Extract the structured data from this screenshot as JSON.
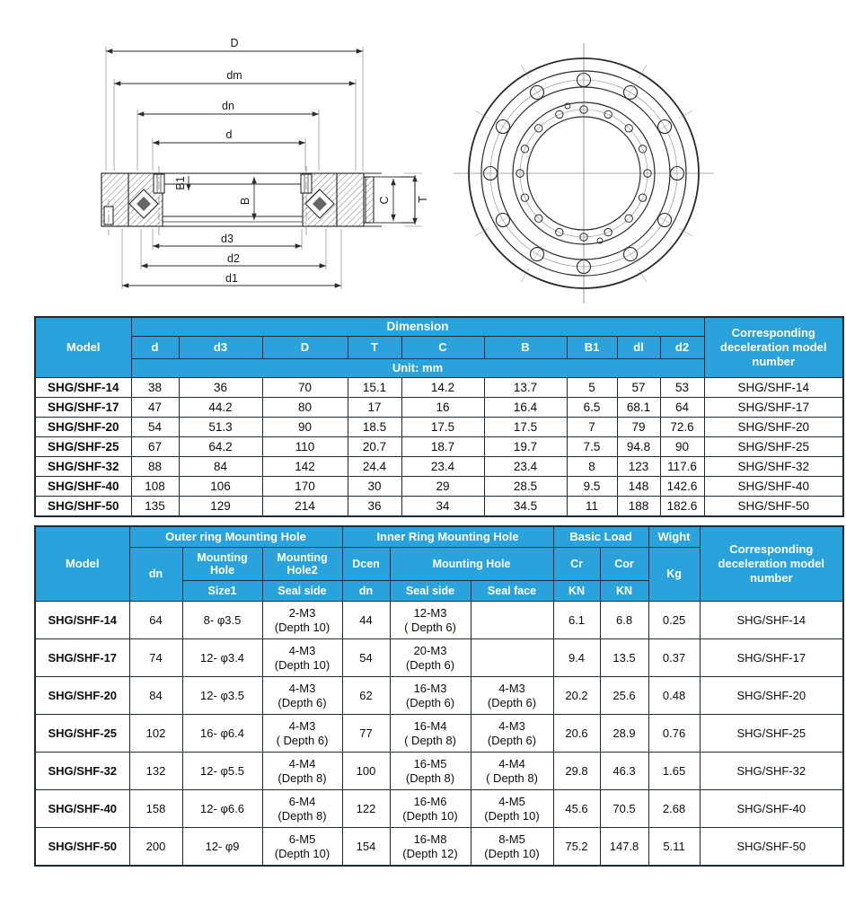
{
  "colors": {
    "header_blue": "#2aa3dc",
    "model_blue": "#2fb5e9",
    "border_dark": "#1c2b36",
    "line_dark": "#2b2b2b"
  },
  "diagram": {
    "labels": {
      "D": "D",
      "dm": "dm",
      "dn": "dn",
      "d": "d",
      "d3": "d3",
      "d2": "d2",
      "d1": "d1",
      "B": "B",
      "B1": "B1",
      "C": "C",
      "T": "T"
    },
    "front_view": {
      "outer_holes": 12,
      "inner_holes": 16
    }
  },
  "table1": {
    "header": {
      "model": "Model",
      "dimension": "Dimension",
      "unit": "Unit:  mm",
      "corresponding": "Corresponding deceleration model number",
      "cols": [
        "d",
        "d3",
        "D",
        "T",
        "C",
        "B",
        "B1",
        "dl",
        "d2"
      ]
    },
    "rows": [
      [
        "SHG/SHF-14",
        "38",
        "36",
        "70",
        "15.1",
        "14.2",
        "13.7",
        "5",
        "57",
        "53",
        "SHG/SHF-14"
      ],
      [
        "SHG/SHF-17",
        "47",
        "44.2",
        "80",
        "17",
        "16",
        "16.4",
        "6.5",
        "68.1",
        "64",
        "SHG/SHF-17"
      ],
      [
        "SHG/SHF-20",
        "54",
        "51.3",
        "90",
        "18.5",
        "17.5",
        "17.5",
        "7",
        "79",
        "72.6",
        "SHG/SHF-20"
      ],
      [
        "SHG/SHF-25",
        "67",
        "64.2",
        "110",
        "20.7",
        "18.7",
        "19.7",
        "7.5",
        "94.8",
        "90",
        "SHG/SHF-25"
      ],
      [
        "SHG/SHF-32",
        "88",
        "84",
        "142",
        "24.4",
        "23.4",
        "23.4",
        "8",
        "123",
        "117.6",
        "SHG/SHF-32"
      ],
      [
        "SHG/SHF-40",
        "108",
        "106",
        "170",
        "30",
        "29",
        "28.5",
        "9.5",
        "148",
        "142.6",
        "SHG/SHF-40"
      ],
      [
        "SHG/SHF-50",
        "135",
        "129",
        "214",
        "36",
        "34",
        "34.5",
        "11",
        "188",
        "182.6",
        "SHG/SHF-50"
      ]
    ]
  },
  "table2": {
    "header": {
      "model": "Model",
      "outer_group": "Outer ring Mounting Hole",
      "inner_group": "Inner Ring Mounting Hole",
      "basic_load": "Basic Load",
      "wight": "Wight",
      "corresponding": "Corresponding deceleration model number",
      "dn": "dn",
      "mounting_hole": "Mounting Hole",
      "mounting_hole2": "Mounting Hole2",
      "dcen": "Dcen",
      "mounting_hole_inner": "Mounting Hole",
      "cr": "Cr",
      "cor": "Cor",
      "kg": "Kg",
      "size1": "Size1",
      "seal_side_outer": "Seal side",
      "dn_inner": "dn",
      "seal_side_inner": "Seal side",
      "seal_face": "Seal face",
      "kn1": "KN",
      "kn2": "KN"
    },
    "rows": [
      [
        "SHG/SHF-14",
        "64",
        "8- φ3.5",
        "2-M3\n(Depth 10)",
        "44",
        "12-M3\n( Depth 6)",
        "",
        "6.1",
        "6.8",
        "0.25",
        "SHG/SHF-14"
      ],
      [
        "SHG/SHF-17",
        "74",
        "12- φ3.4",
        "4-M3\n(Depth 10)",
        "54",
        "20-M3\n(Depth 6)",
        "",
        "9.4",
        "13.5",
        "0.37",
        "SHG/SHF-17"
      ],
      [
        "SHG/SHF-20",
        "84",
        "12- φ3.5",
        "4-M3\n(Depth 6)",
        "62",
        "16-M3\n(Depth 6)",
        "4-M3\n(Depth 6)",
        "20.2",
        "25.6",
        "0.48",
        "SHG/SHF-20"
      ],
      [
        "SHG/SHF-25",
        "102",
        "16- φ6.4",
        "4-M3\n( Depth 6)",
        "77",
        "16-M4\n( Depth 8)",
        "4-M3\n(Depth 6)",
        "20.6",
        "28.9",
        "0.76",
        "SHG/SHF-25"
      ],
      [
        "SHG/SHF-32",
        "132",
        "12- φ5.5",
        "4-M4\n(Depth 8)",
        "100",
        "16-M5\n(Depth 8)",
        "4-M4\n( Depth 8)",
        "29.8",
        "46.3",
        "1.65",
        "SHG/SHF-32"
      ],
      [
        "SHG/SHF-40",
        "158",
        "12- φ6.6",
        "6-M4\n(Depth 8)",
        "122",
        "16-M6\n(Depth 10)",
        "4-M5\n(Depth 10)",
        "45.6",
        "70.5",
        "2.68",
        "SHG/SHF-40"
      ],
      [
        "SHG/SHF-50",
        "200",
        "12- φ9",
        "6-M5\n(Depth 10)",
        "154",
        "16-M8\n(Depth 12)",
        "8-M5\n(Depth 10)",
        "75.2",
        "147.8",
        "5.11",
        "SHG/SHF-50"
      ]
    ]
  }
}
